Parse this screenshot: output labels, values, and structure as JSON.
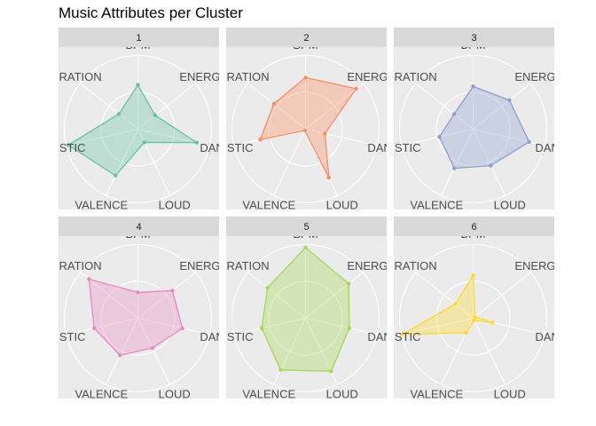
{
  "title": "Music Attributes per Cluster",
  "chart_data": {
    "type": "radar",
    "title": "Music Attributes per Cluster",
    "axes": [
      "BPM",
      "ENERGY",
      "DANCE",
      "LOUD",
      "VALENCE",
      "ACOUSTIC",
      "DURATION"
    ],
    "axis_labels_shown": [
      "BPM",
      "ENERG",
      "DANCE",
      "LOUD",
      "VALENCE",
      "OUSTIC",
      "DURATION"
    ],
    "range": [
      0,
      1
    ],
    "grid_levels": [
      0.5,
      1.0
    ],
    "series": [
      {
        "name": "1",
        "color": "#66C2A5",
        "values": [
          0.6,
          0.3,
          0.82,
          0.2,
          0.7,
          0.97,
          0.33
        ]
      },
      {
        "name": "2",
        "color": "#FC8D62",
        "values": [
          0.7,
          0.88,
          0.27,
          0.73,
          0.02,
          0.63,
          0.55
        ]
      },
      {
        "name": "3",
        "color": "#8DA0CB",
        "values": [
          0.58,
          0.63,
          0.78,
          0.55,
          0.59,
          0.47,
          0.33
        ]
      },
      {
        "name": "4",
        "color": "#E78AC3",
        "values": [
          0.35,
          0.6,
          0.62,
          0.45,
          0.56,
          0.61,
          0.85
        ]
      },
      {
        "name": "5",
        "color": "#A6D854",
        "values": [
          0.96,
          0.75,
          0.61,
          0.8,
          0.78,
          0.61,
          0.66
        ]
      },
      {
        "name": "6",
        "color": "#FFD92F",
        "values": [
          0.58,
          0.03,
          0.27,
          0.03,
          0.22,
          0.98,
          0.31
        ]
      }
    ]
  }
}
